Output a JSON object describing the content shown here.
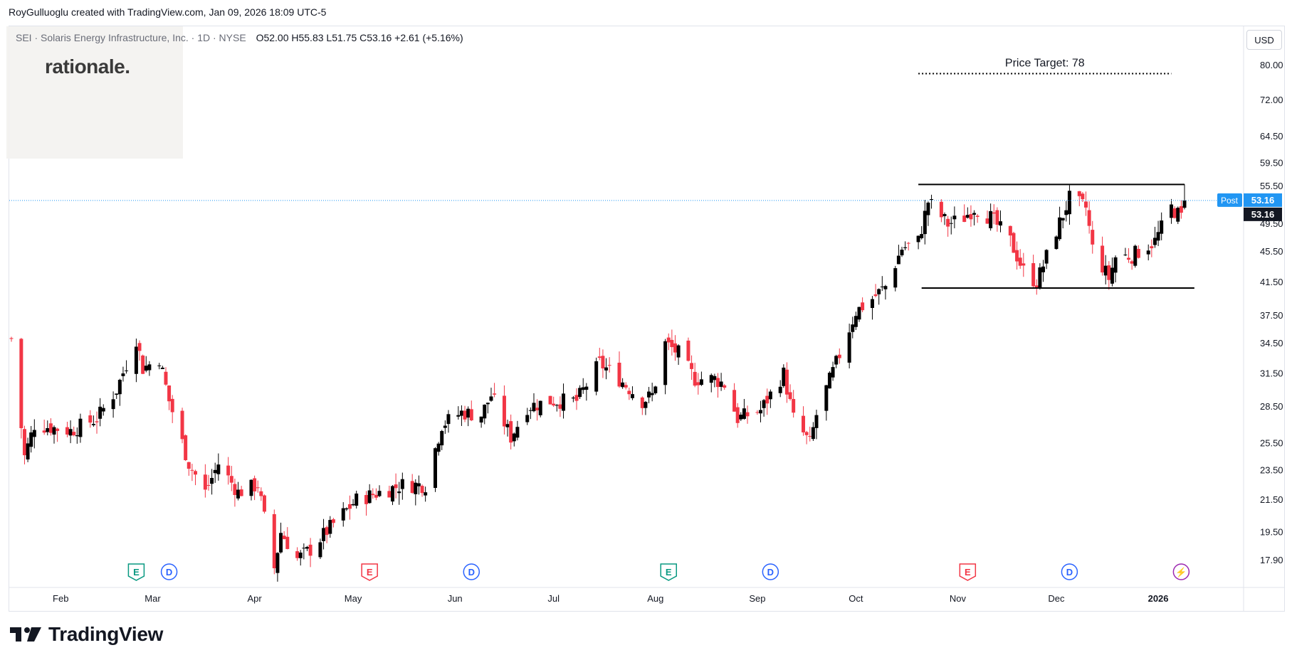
{
  "header": {
    "text": "RoyGulluoglu created with TradingView.com, Jan 09, 2026 18:09 UTC-5"
  },
  "legend": {
    "symbol": "SEI · Solaris Energy Infrastructure, Inc. · 1D · NYSE",
    "ohlc": "O52.00  H55.83  L51.75  C53.16  +2.61 (+5.16%)"
  },
  "logo": {
    "text": "rationale."
  },
  "currency": "USD",
  "footer": {
    "brand": "TradingView"
  },
  "colors": {
    "up": "#000000",
    "down": "#f23645",
    "grid": "#e0e3eb",
    "accent": "#2962ff",
    "post": "#2196f3"
  },
  "chart_data": {
    "type": "candlestick",
    "symbol": "SEI",
    "interval": "1D",
    "yscale": "log",
    "ylim": [
      16.5,
      90
    ],
    "y_ticks": [
      80.0,
      72.0,
      64.5,
      59.5,
      55.5,
      49.5,
      45.5,
      41.5,
      37.5,
      34.5,
      31.5,
      28.5,
      25.5,
      23.5,
      21.5,
      19.5,
      17.9
    ],
    "x_labels": [
      {
        "label": "Feb",
        "date": "2025-02-01"
      },
      {
        "label": "Mar",
        "date": "2025-03-01"
      },
      {
        "label": "Apr",
        "date": "2025-04-01"
      },
      {
        "label": "May",
        "date": "2025-05-01"
      },
      {
        "label": "Jun",
        "date": "2025-06-01"
      },
      {
        "label": "Jul",
        "date": "2025-07-01"
      },
      {
        "label": "Aug",
        "date": "2025-08-01"
      },
      {
        "label": "Sep",
        "date": "2025-09-01"
      },
      {
        "label": "Oct",
        "date": "2025-10-01"
      },
      {
        "label": "Nov",
        "date": "2025-11-01"
      },
      {
        "label": "Dec",
        "date": "2025-12-01"
      },
      {
        "label": "2026",
        "date": "2026-01-01",
        "bold": true
      }
    ],
    "date_range": [
      "2025-01-17",
      "2026-01-09"
    ],
    "anchors": [
      {
        "date": "2025-01-17",
        "close": 35
      },
      {
        "date": "2025-01-21",
        "close": 24.5
      },
      {
        "date": "2025-01-24",
        "close": 27
      },
      {
        "date": "2025-02-04",
        "close": 26.5
      },
      {
        "date": "2025-02-12",
        "close": 27.5
      },
      {
        "date": "2025-02-18",
        "close": 30
      },
      {
        "date": "2025-02-24",
        "close": 35
      },
      {
        "date": "2025-02-26",
        "close": 32
      },
      {
        "date": "2025-03-03",
        "close": 33
      },
      {
        "date": "2025-03-06",
        "close": 29
      },
      {
        "date": "2025-03-12",
        "close": 24
      },
      {
        "date": "2025-03-17",
        "close": 22
      },
      {
        "date": "2025-03-21",
        "close": 24
      },
      {
        "date": "2025-03-27",
        "close": 22
      },
      {
        "date": "2025-04-02",
        "close": 22.5
      },
      {
        "date": "2025-04-07",
        "close": 17.5
      },
      {
        "date": "2025-04-09",
        "close": 19.5
      },
      {
        "date": "2025-04-14",
        "close": 18
      },
      {
        "date": "2025-04-18",
        "close": 18.5
      },
      {
        "date": "2025-04-25",
        "close": 20
      },
      {
        "date": "2025-05-02",
        "close": 21.5
      },
      {
        "date": "2025-05-09",
        "close": 22
      },
      {
        "date": "2025-05-16",
        "close": 22.5
      },
      {
        "date": "2025-05-23",
        "close": 22.5
      },
      {
        "date": "2025-05-28",
        "close": 27
      },
      {
        "date": "2025-06-03",
        "close": 28
      },
      {
        "date": "2025-06-09",
        "close": 27.8
      },
      {
        "date": "2025-06-12",
        "close": 29.5
      },
      {
        "date": "2025-06-18",
        "close": 26
      },
      {
        "date": "2025-06-23",
        "close": 28.5
      },
      {
        "date": "2025-06-30",
        "close": 29
      },
      {
        "date": "2025-07-08",
        "close": 29
      },
      {
        "date": "2025-07-15",
        "close": 32.5
      },
      {
        "date": "2025-07-21",
        "close": 31
      },
      {
        "date": "2025-07-28",
        "close": 29
      },
      {
        "date": "2025-07-31",
        "close": 29.5
      },
      {
        "date": "2025-08-04",
        "close": 34.5
      },
      {
        "date": "2025-08-08",
        "close": 33.5
      },
      {
        "date": "2025-08-13",
        "close": 31
      },
      {
        "date": "2025-08-19",
        "close": 31
      },
      {
        "date": "2025-08-22",
        "close": 30.5
      },
      {
        "date": "2025-08-26",
        "close": 27.5
      },
      {
        "date": "2025-09-02",
        "close": 28.2
      },
      {
        "date": "2025-09-09",
        "close": 31.5
      },
      {
        "date": "2025-09-12",
        "close": 27.5
      },
      {
        "date": "2025-09-17",
        "close": 25.5
      },
      {
        "date": "2025-09-19",
        "close": 27.8
      },
      {
        "date": "2025-09-25",
        "close": 32.5
      },
      {
        "date": "2025-10-01",
        "close": 38
      },
      {
        "date": "2025-10-06",
        "close": 39.5
      },
      {
        "date": "2025-10-10",
        "close": 41
      },
      {
        "date": "2025-10-15",
        "close": 46
      },
      {
        "date": "2025-10-20",
        "close": 47
      },
      {
        "date": "2025-10-23",
        "close": 53
      },
      {
        "date": "2025-10-29",
        "close": 49.5
      },
      {
        "date": "2025-11-03",
        "close": 50.5
      },
      {
        "date": "2025-11-06",
        "close": 52
      },
      {
        "date": "2025-11-11",
        "close": 50.5
      },
      {
        "date": "2025-11-17",
        "close": 47
      },
      {
        "date": "2025-11-21",
        "close": 43
      },
      {
        "date": "2025-11-25",
        "close": 41.5
      },
      {
        "date": "2025-12-01",
        "close": 48.5
      },
      {
        "date": "2025-12-05",
        "close": 53.5
      },
      {
        "date": "2025-12-10",
        "close": 52
      },
      {
        "date": "2025-12-12",
        "close": 46
      },
      {
        "date": "2025-12-17",
        "close": 42
      },
      {
        "date": "2025-12-19",
        "close": 44.8
      },
      {
        "date": "2025-12-24",
        "close": 45
      },
      {
        "date": "2025-12-31",
        "close": 47
      },
      {
        "date": "2026-01-05",
        "close": 52
      },
      {
        "date": "2026-01-08",
        "close": 50.55
      },
      {
        "date": "2026-01-09",
        "close": 53.16
      }
    ],
    "last_bar": {
      "date": "2026-01-09",
      "open": 52.0,
      "high": 55.83,
      "low": 51.75,
      "close": 53.16,
      "change": 2.61,
      "change_pct": 5.16
    },
    "price_labels": [
      {
        "text": "Post",
        "value": "53.16",
        "price": 53.16,
        "bg": "#2196f3",
        "fg": "#ffffff"
      },
      {
        "text": "",
        "value": "53.16",
        "price": 53.16,
        "bg": "#131722",
        "fg": "#ffffff"
      }
    ],
    "annotations": {
      "price_target": {
        "label": "Price Target: 78",
        "price": 78,
        "from": "2025-10-20",
        "to": "2026-01-05",
        "style": "dotted"
      },
      "resistance": {
        "price": 55.8,
        "from": "2025-10-20",
        "to": "2026-01-09"
      },
      "support": {
        "price": 40.8,
        "from": "2025-10-21",
        "to": "2026-01-12"
      },
      "current_line": {
        "price": 53.16,
        "style": "dotted",
        "color": "#2196f3"
      }
    },
    "events": [
      {
        "type": "E",
        "date": "2025-02-24",
        "color": "#089981"
      },
      {
        "type": "D",
        "date": "2025-03-06",
        "color": "#2962ff"
      },
      {
        "type": "E",
        "date": "2025-05-06",
        "color": "#f23645"
      },
      {
        "type": "D",
        "date": "2025-06-06",
        "color": "#2962ff"
      },
      {
        "type": "E",
        "date": "2025-08-05",
        "color": "#089981"
      },
      {
        "type": "D",
        "date": "2025-09-05",
        "color": "#2962ff"
      },
      {
        "type": "E",
        "date": "2025-11-04",
        "color": "#f23645"
      },
      {
        "type": "D",
        "date": "2025-12-05",
        "color": "#2962ff"
      },
      {
        "type": "⚡",
        "date": "2026-01-08",
        "color": "#9c27b0"
      }
    ],
    "grid": false
  }
}
